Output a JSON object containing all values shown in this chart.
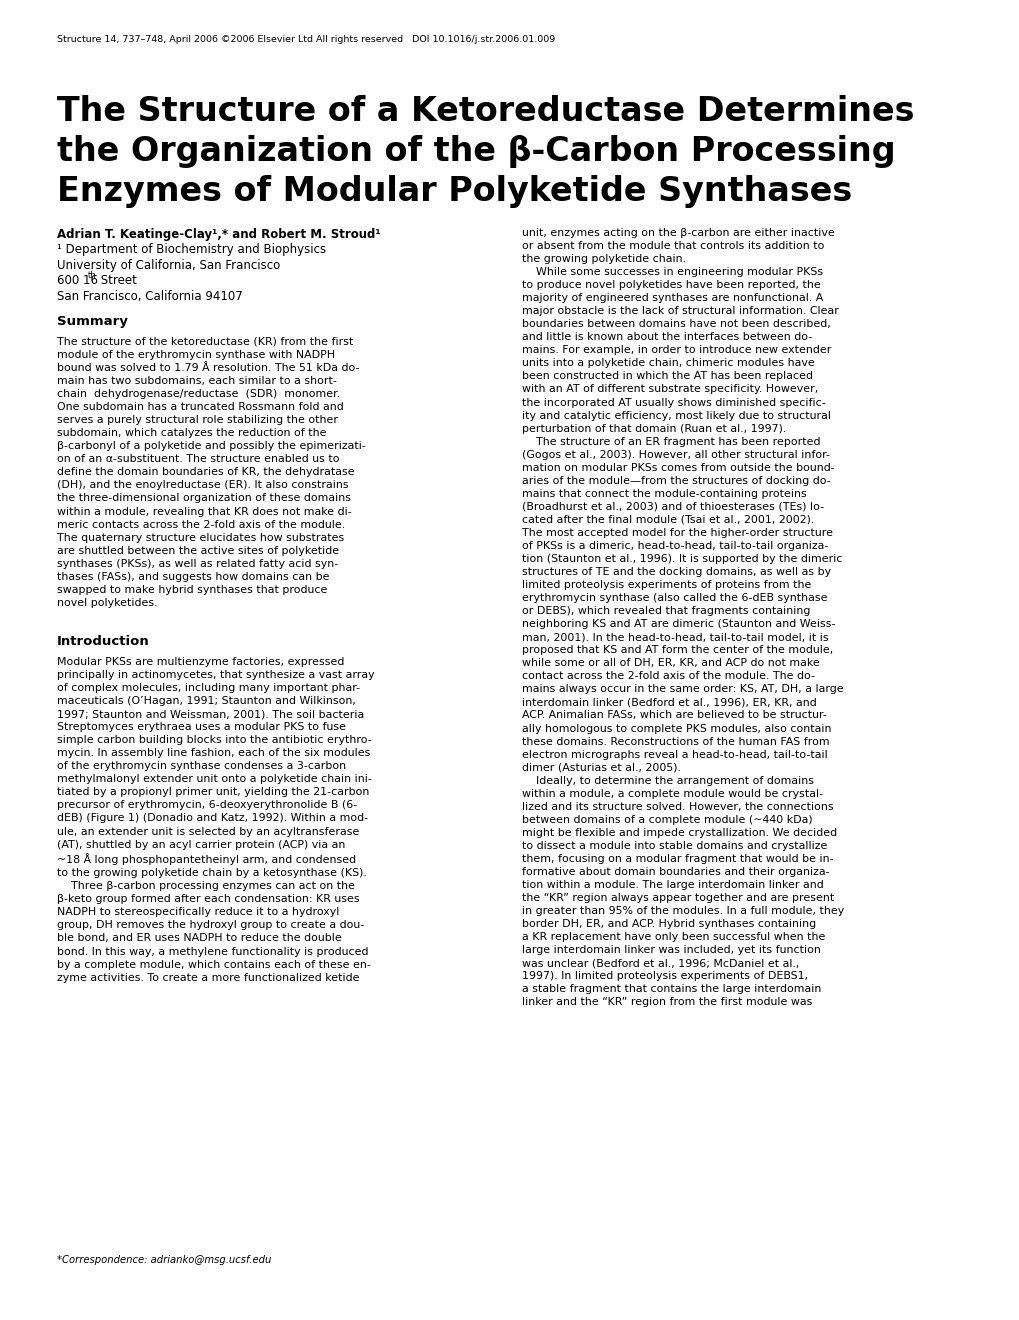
{
  "background_color": "#ffffff",
  "header_line": "Structure 14, 737–748, April 2006 ©2006 Elsevier Ltd All rights reserved   DOI 10.1016/j.str.2006.01.009",
  "title_line1": "The Structure of a Ketoreductase Determines",
  "title_line2": "the Organization of the β-Carbon Processing",
  "title_line3": "Enzymes of Modular Polyketide Synthases",
  "author_line1": "Adrian T. Keatinge-Clay",
  "author_line1b": " and Robert M. Stroud",
  "author_rest": [
    "¹ Department of Biochemistry and Biophysics",
    "University of California, San Francisco",
    "600 16ᵗʰ Street",
    "San Francisco, California 94107"
  ],
  "footnote": "*Correspondence: adrianko@msg.ucsf.edu",
  "summary_heading": "Summary",
  "intro_heading": "Introduction"
}
